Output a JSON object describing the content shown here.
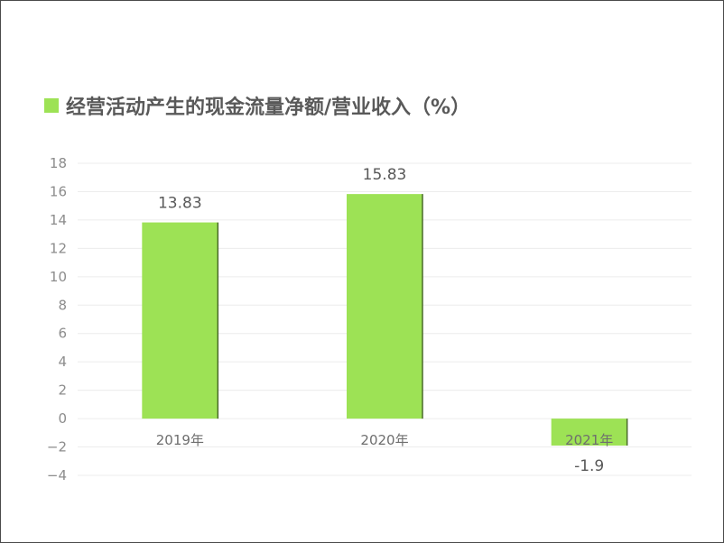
{
  "chart_data": {
    "type": "bar",
    "title": "经营活动产生的现金流量净额/营业收入（%）",
    "categories": [
      "2019年",
      "2020年",
      "2021年"
    ],
    "series": [
      {
        "values": [
          13.83,
          15.83,
          -1.9
        ],
        "labels": [
          "13.83",
          "15.83",
          "-1.9"
        ]
      }
    ],
    "ylim": [
      -4,
      18
    ],
    "yticks": [
      {
        "value": 18,
        "label": "18"
      },
      {
        "value": 16,
        "label": "16"
      },
      {
        "value": 14,
        "label": "14"
      },
      {
        "value": 12,
        "label": "12"
      },
      {
        "value": 10,
        "label": "10"
      },
      {
        "value": 8,
        "label": "8"
      },
      {
        "value": 6,
        "label": "6"
      },
      {
        "value": 4,
        "label": "4"
      },
      {
        "value": 2,
        "label": "2"
      },
      {
        "value": 0,
        "label": "0"
      },
      {
        "value": -2,
        "label": "−2"
      },
      {
        "value": -4,
        "label": "−4"
      }
    ],
    "grid": true,
    "legend_position": "top-left",
    "colors": {
      "bar": "#9de255",
      "bar_edge": "#4a6a2a",
      "grid": "#ececec",
      "legend": "#9de255"
    }
  }
}
